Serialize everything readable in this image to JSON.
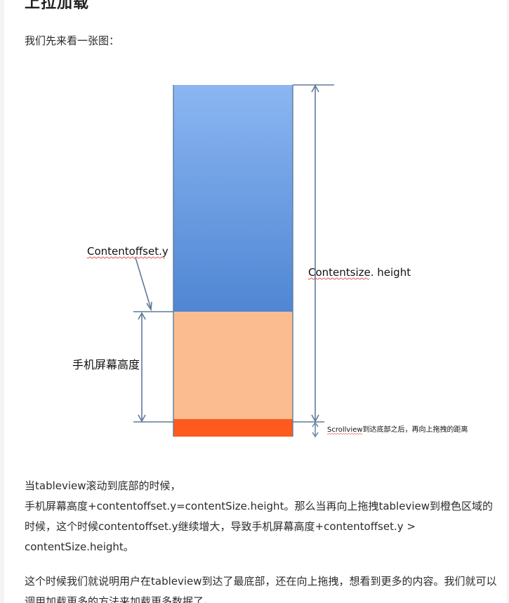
{
  "section_title": "上拉加载",
  "intro_text": "我们先来看一张图：",
  "diagram": {
    "label_contentoffset": "Contentoffset.y",
    "label_contentsize": "Contentsize. height",
    "label_screen_height": "手机屏幕高度",
    "label_drag_distance": "Scrollview到达底部之后，再向上拖拽的距离",
    "colors": {
      "content_top": "#8bb6f2",
      "content_bottom": "#4f86d3",
      "screen_area": "#fbbd8f",
      "drag_area": "#fe5a1d",
      "lines": "#5f7a99"
    }
  },
  "paragraph1": {
    "line1": "当tableview滚动到底部的时候，",
    "line2": "手机屏幕高度+contentoffset.y=contentSize.height。那么当再向上拖拽tableview到橙色区域的时候，这个时候contentoffset.y继续增大，导致手机屏幕高度+contentoffset.y > contentSize.height。"
  },
  "paragraph2": "这个时候我们就说明用户在tableview到达了最底部，还在向上拖拽，想看到更多的内容。我们就可以调用加载更多的方法来加载更多数据了。"
}
